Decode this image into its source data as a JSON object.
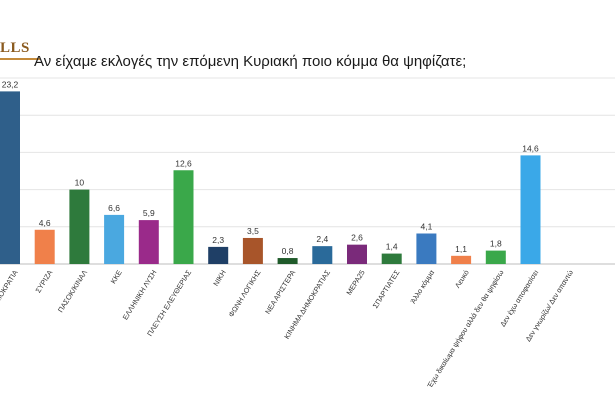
{
  "header": {
    "logo_text": "LLS",
    "title": "Αν είχαμε εκλογές την επόμενη Κυριακή ποιο κόμμα θα ψηφίζατε;"
  },
  "chart_data": {
    "type": "bar",
    "title": "Αν είχαμε εκλογές την επόμενη Κυριακή ποιο κόμμα θα ψηφίζατε;",
    "xlabel": "",
    "ylabel": "",
    "ylim": [
      0,
      25
    ],
    "grid": true,
    "legend": "none",
    "categories": [
      "ΝΕΑ ΔΗΜΟΚΡΑΤΙΑ",
      "ΣΥΡΙΖΑ",
      "ΠΑΣΟΚ/ΚΙΝΑΛ",
      "ΚΚΕ",
      "ΕΛΛΗΝΙΚΗ ΛΥΣΗ",
      "ΠΛΕΥΣΗ ΕΛΕΥΘΕΡΙΑΣ",
      "ΝΙΚΗ",
      "ΦΩΝΗ ΛΟΓΙΚΗΣ",
      "ΝΕΑ ΑΡΙΣΤΕΡΑ",
      "ΚΙΝΗΜΑ ΔΗΜΟΚΡΑΤΙΑΣ",
      "ΜΕΡΑ25",
      "ΣΠΑΡΤΙΑΤΕΣ",
      "Άλλο κόμμα",
      "Λευκό",
      "Έχω δικαίωμα ψήφου αλλά δεν θα ψηφίσω",
      "Δεν έχω αποφασίσει",
      "Δεν γνωρίζω/ Δεν απαντώ"
    ],
    "values": [
      23.2,
      4.6,
      10,
      6.6,
      5.9,
      12.6,
      2.3,
      3.5,
      0.8,
      2.4,
      2.6,
      1.4,
      4.1,
      1.1,
      1.8,
      14.6,
      null
    ],
    "value_labels": [
      "23,2",
      "4,6",
      "10",
      "6,6",
      "5,9",
      "12,6",
      "2,3",
      "3,5",
      "0,8",
      "2,4",
      "2,6",
      "1,4",
      "4,1",
      "1,1",
      "1,8",
      "14,6",
      ""
    ],
    "colors": [
      "#2f5f8a",
      "#f0804a",
      "#2e7a3c",
      "#4aa8e0",
      "#9a2a8a",
      "#3aa84a",
      "#1f3f66",
      "#a8552a",
      "#1f5a2a",
      "#2a6a9a",
      "#7a2a7a",
      "#2e7a3c",
      "#3a7ac0",
      "#f0804a",
      "#3aa84a",
      "#3aa8e8",
      "#3a5a8a"
    ]
  }
}
